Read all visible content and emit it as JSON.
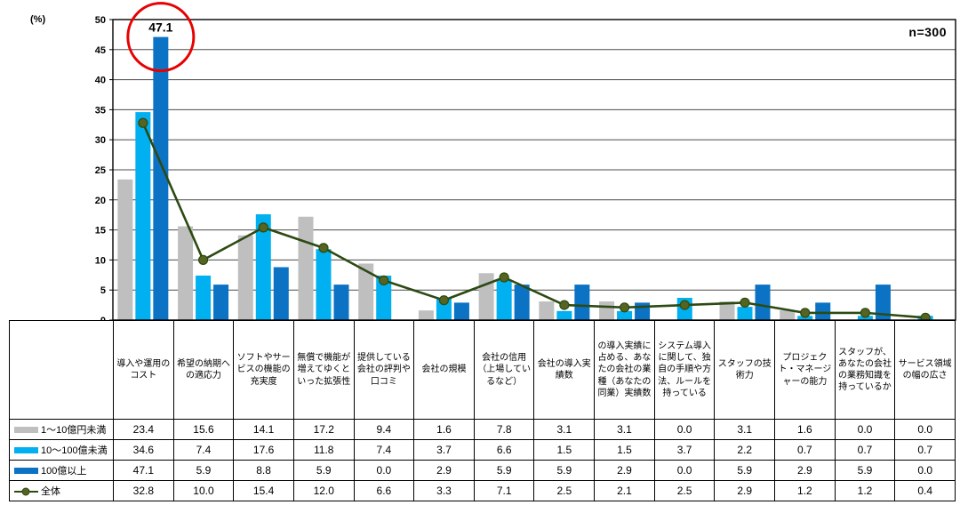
{
  "chart": {
    "percent_label": "(%)",
    "sample_label": "n=300",
    "y_ticks": [
      "0",
      "5",
      "10",
      "15",
      "20",
      "25",
      "30",
      "35",
      "40",
      "45",
      "50"
    ],
    "grid_color": "#4d4d4d",
    "border_color": "#000000",
    "annotation_color": "#e80000"
  },
  "chart_data": {
    "type": "bar",
    "subtype": "grouped-bars-with-overlay-line",
    "title": "",
    "xlabel": "",
    "ylabel": "(%)",
    "ylim": [
      0,
      50
    ],
    "y_step": 5,
    "grid": true,
    "legend_position": "table-rows-left",
    "sample_size": "n=300",
    "categories": [
      "導入や運用のコスト",
      "希望の納期への適応力",
      "ソフトやサービスの機能の充実度",
      "無償で機能が増えてゆくといった拡張性",
      "提供している会社の評判や口コミ",
      "会社の規模",
      "会社の信用（上場しているなど）",
      "会社の導入実績数",
      "の導入実績に占める、あなたの会社の業種（あなたの同業）実績数",
      "システム導入に関して、独自の手順や方法、ルールを持っている",
      "スタッフの技術力",
      "プロジェクト・マネージャーの能力",
      "スタッフが、あなたの会社の業務知識を持っているか",
      "サービス領域の幅の広さ"
    ],
    "series": [
      {
        "name": "1～10億円未満",
        "type": "bar",
        "color": "#bfbfbf",
        "values": [
          23.4,
          15.6,
          14.1,
          17.2,
          9.4,
          1.6,
          7.8,
          3.1,
          3.1,
          0.0,
          3.1,
          1.6,
          0.0,
          0.0
        ]
      },
      {
        "name": "10～100億未満",
        "type": "bar",
        "color": "#00b0f0",
        "values": [
          34.6,
          7.4,
          17.6,
          11.8,
          7.4,
          3.7,
          6.6,
          1.5,
          1.5,
          3.7,
          2.2,
          0.7,
          0.7,
          0.7
        ]
      },
      {
        "name": "100億以上",
        "type": "bar",
        "color": "#0b72c4",
        "values": [
          47.1,
          5.9,
          8.8,
          5.9,
          0.0,
          2.9,
          5.9,
          5.9,
          2.9,
          0.0,
          5.9,
          2.9,
          5.9,
          0.0
        ]
      },
      {
        "name": "全体",
        "type": "line",
        "color": "#2c4a12",
        "marker_color": "#566321",
        "values": [
          32.8,
          10.0,
          15.4,
          12.0,
          6.6,
          3.3,
          7.1,
          2.5,
          2.1,
          2.5,
          2.9,
          1.2,
          1.2,
          0.4
        ]
      }
    ],
    "annotation": {
      "label": "47.1",
      "series_index": 2,
      "category_index": 0
    }
  },
  "table": {
    "corner_label": ""
  }
}
